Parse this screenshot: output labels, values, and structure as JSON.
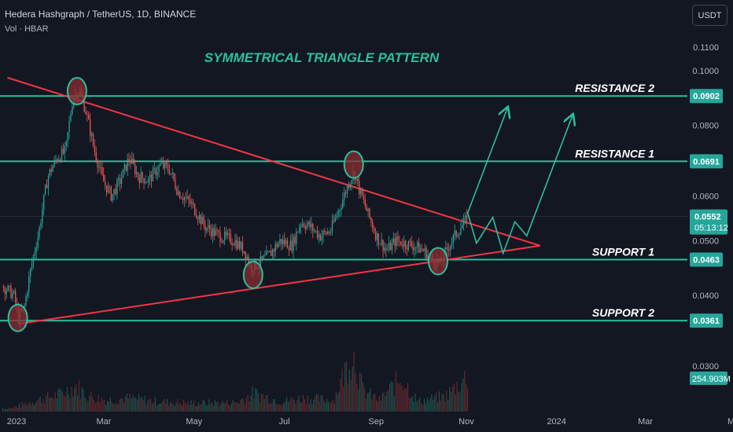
{
  "header": {
    "title": "Hedera Hashgraph / TetherUS, 1D, BINANCE",
    "volume_label": "Vol · HBAR",
    "currency_button": "USDT"
  },
  "colors": {
    "background": "#131722",
    "level_line": "#2bbf9e",
    "trend_line": "#f23645",
    "candle_up": "#26a69a",
    "candle_down": "#ef5350",
    "marker_fill": "#8b2c30",
    "marker_stroke": "#2bbf9e",
    "badge_bg": "#26a69a",
    "annotation_text": "#2bbf9e",
    "level_text": "#ffffff"
  },
  "chart_data": {
    "type": "candlestick",
    "title": "SYMMETRICAL TRIANGLE PATTERN",
    "ylim": [
      0.026,
      0.112
    ],
    "y_ticks": [
      "0.1100",
      "0.1000",
      "0.0800",
      "0.0600",
      "0.0500",
      "0.0400",
      "0.0300"
    ],
    "x_ticks": [
      "2023",
      "Mar",
      "May",
      "Jul",
      "Sep",
      "Nov",
      "2024",
      "Mar",
      "May"
    ],
    "levels": [
      {
        "name": "RESISTANCE 2",
        "value": 0.0902,
        "label": "0.0902"
      },
      {
        "name": "RESISTANCE 1",
        "value": 0.0691,
        "label": "0.0691"
      },
      {
        "name": "SUPPORT 1",
        "value": 0.0463,
        "label": "0.0463"
      },
      {
        "name": "SUPPORT 2",
        "value": 0.0361,
        "label": "0.0361"
      }
    ],
    "current_price": {
      "value": 0.0552,
      "label": "0.0552",
      "countdown": "05:13:12"
    },
    "volume_label": "254.903M",
    "price_path": [
      [
        "2022-12-25",
        0.0415
      ],
      [
        "2023-01-01",
        0.04
      ],
      [
        "2023-01-04",
        0.0365
      ],
      [
        "2023-01-08",
        0.038
      ],
      [
        "2023-01-12",
        0.044
      ],
      [
        "2023-01-18",
        0.052
      ],
      [
        "2023-01-24",
        0.065
      ],
      [
        "2023-01-30",
        0.07
      ],
      [
        "2023-02-05",
        0.072
      ],
      [
        "2023-02-10",
        0.09
      ],
      [
        "2023-02-14",
        0.092
      ],
      [
        "2023-02-18",
        0.086
      ],
      [
        "2023-02-24",
        0.073
      ],
      [
        "2023-03-02",
        0.064
      ],
      [
        "2023-03-08",
        0.06
      ],
      [
        "2023-03-14",
        0.064
      ],
      [
        "2023-03-20",
        0.07
      ],
      [
        "2023-03-26",
        0.065
      ],
      [
        "2023-04-02",
        0.064
      ],
      [
        "2023-04-10",
        0.068
      ],
      [
        "2023-04-16",
        0.067
      ],
      [
        "2023-04-22",
        0.061
      ],
      [
        "2023-05-01",
        0.058
      ],
      [
        "2023-05-10",
        0.053
      ],
      [
        "2023-05-20",
        0.051
      ],
      [
        "2023-05-30",
        0.05
      ],
      [
        "2023-06-06",
        0.048
      ],
      [
        "2023-06-10",
        0.045
      ],
      [
        "2023-06-15",
        0.0455
      ],
      [
        "2023-06-22",
        0.047
      ],
      [
        "2023-06-30",
        0.05
      ],
      [
        "2023-07-08",
        0.049
      ],
      [
        "2023-07-14",
        0.054
      ],
      [
        "2023-07-20",
        0.053
      ],
      [
        "2023-07-27",
        0.051
      ],
      [
        "2023-08-03",
        0.052
      ],
      [
        "2023-08-10",
        0.058
      ],
      [
        "2023-08-16",
        0.064
      ],
      [
        "2023-08-19",
        0.066
      ],
      [
        "2023-08-22",
        0.062
      ],
      [
        "2023-08-28",
        0.056
      ],
      [
        "2023-09-03",
        0.051
      ],
      [
        "2023-09-10",
        0.048
      ],
      [
        "2023-09-16",
        0.05
      ],
      [
        "2023-09-22",
        0.0495
      ],
      [
        "2023-09-28",
        0.049
      ],
      [
        "2023-10-05",
        0.048
      ],
      [
        "2023-10-12",
        0.046
      ],
      [
        "2023-10-16",
        0.0455
      ],
      [
        "2023-10-22",
        0.049
      ],
      [
        "2023-10-28",
        0.052
      ],
      [
        "2023-11-02",
        0.054
      ],
      [
        "2023-11-04",
        0.0552
      ]
    ],
    "volume_path": [
      [
        "2023-01-01",
        30
      ],
      [
        "2023-01-10",
        60
      ],
      [
        "2023-01-20",
        90
      ],
      [
        "2023-02-01",
        120
      ],
      [
        "2023-02-12",
        180
      ],
      [
        "2023-02-20",
        110
      ],
      [
        "2023-03-05",
        80
      ],
      [
        "2023-03-20",
        95
      ],
      [
        "2023-04-10",
        70
      ],
      [
        "2023-05-01",
        60
      ],
      [
        "2023-06-01",
        65
      ],
      [
        "2023-06-12",
        130
      ],
      [
        "2023-07-01",
        70
      ],
      [
        "2023-07-15",
        95
      ],
      [
        "2023-08-05",
        80
      ],
      [
        "2023-08-18",
        420
      ],
      [
        "2023-08-25",
        150
      ],
      [
        "2023-09-05",
        80
      ],
      [
        "2023-09-20",
        240
      ],
      [
        "2023-10-01",
        70
      ],
      [
        "2023-10-20",
        110
      ],
      [
        "2023-11-04",
        255
      ]
    ],
    "trendlines": {
      "upper": [
        [
          "2022-12-28",
          0.0972
        ],
        [
          "2023-12-23",
          0.049
        ]
      ],
      "lower": [
        [
          "2023-01-04",
          0.0356
        ],
        [
          "2023-12-23",
          0.049
        ]
      ]
    },
    "markers": [
      {
        "date": "2023-01-04",
        "value": 0.0365
      },
      {
        "date": "2023-02-13",
        "value": 0.092
      },
      {
        "date": "2023-06-12",
        "value": 0.0435
      },
      {
        "date": "2023-08-19",
        "value": 0.0682
      },
      {
        "date": "2023-10-15",
        "value": 0.046
      }
    ],
    "projections": [
      [
        [
          "2023-11-04",
          0.056
        ],
        [
          "2023-12-01",
          0.086
        ]
      ],
      [
        [
          "2023-11-04",
          0.056
        ],
        [
          "2023-11-10",
          0.0495
        ],
        [
          "2023-11-21",
          0.055
        ],
        [
          "2023-11-28",
          0.0475
        ],
        [
          "2023-12-06",
          0.054
        ],
        [
          "2023-12-14",
          0.051
        ],
        [
          "2024-01-14",
          0.0835
        ]
      ]
    ]
  }
}
